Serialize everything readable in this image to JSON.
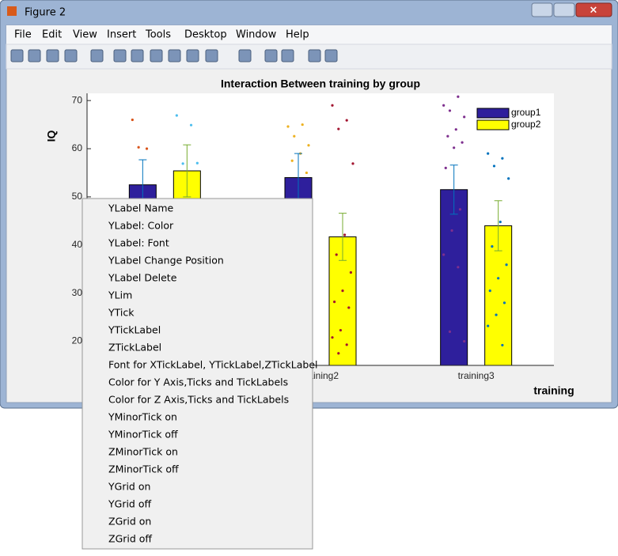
{
  "window": {
    "title": "Figure 2"
  },
  "menu_bar": [
    "File",
    "Edit",
    "View",
    "Insert",
    "Tools",
    "Desktop",
    "Window",
    "Help"
  ],
  "chart_data": {
    "type": "bar",
    "title": "Interaction Between training by group",
    "xlabel": "training",
    "ylabel": "IQ",
    "categories": [
      null,
      "training2",
      "training3"
    ],
    "ylim": [
      15,
      71.5
    ],
    "yticks": [
      20,
      30,
      40,
      50,
      60,
      70
    ],
    "legend": "upper right",
    "series": [
      {
        "name": "group1",
        "color": "#2e1f9c",
        "error_color": "#0072bd",
        "values": [
          52.5,
          54,
          51.5
        ],
        "errors": [
          5.2,
          5,
          5.1
        ],
        "point_colors": [
          "#d95319",
          "#edb120",
          "#7e2f8e"
        ],
        "points": [
          [
            66,
            60,
            60.3
          ],
          [
            64.6,
            65,
            62.6,
            60.7,
            59,
            57.5,
            55
          ],
          [
            69,
            70.8,
            67.9,
            66.6,
            64,
            62.6,
            61.3,
            60.2,
            56,
            47.4,
            43,
            38,
            35.4,
            22,
            20
          ]
        ]
      },
      {
        "name": "group2",
        "color": "#ffff00",
        "error_color": "#77ac30",
        "values": [
          55.4,
          41.7,
          44
        ],
        "errors": [
          5.4,
          4.9,
          5.2
        ],
        "point_colors": [
          "#4dbeee",
          "#a2142f",
          "#0072bd"
        ],
        "points": [
          [
            66.9,
            64.9,
            56.9,
            57
          ],
          [
            69,
            65.9,
            64.1,
            56.9,
            42.1,
            38,
            34.3,
            30.5,
            28.2,
            27,
            22.3,
            20.8,
            19.3,
            17.5
          ],
          [
            59,
            58,
            56.4,
            53.8,
            44.8,
            39.7,
            35.9,
            33.1,
            30.5,
            28,
            25.5,
            23.2,
            19.2
          ]
        ]
      }
    ]
  },
  "context_menu": [
    "YLabel Name",
    "YLabel: Color",
    "YLabel: Font",
    "YLabel Change Position",
    "YLabel Delete",
    "YLim",
    "YTick",
    "YTickLabel",
    "ZTickLabel",
    "Font for XTickLabel, YTickLabel,ZTickLabel",
    "Color for Y Axis,Ticks and TickLabels",
    "Color for Z Axis,Ticks and TickLabels",
    "YMinorTick on",
    "YMinorTick off",
    "ZMinorTick on",
    "ZMinorTick off",
    "YGrid on",
    "YGrid off",
    "ZGrid on",
    "ZGrid off"
  ]
}
